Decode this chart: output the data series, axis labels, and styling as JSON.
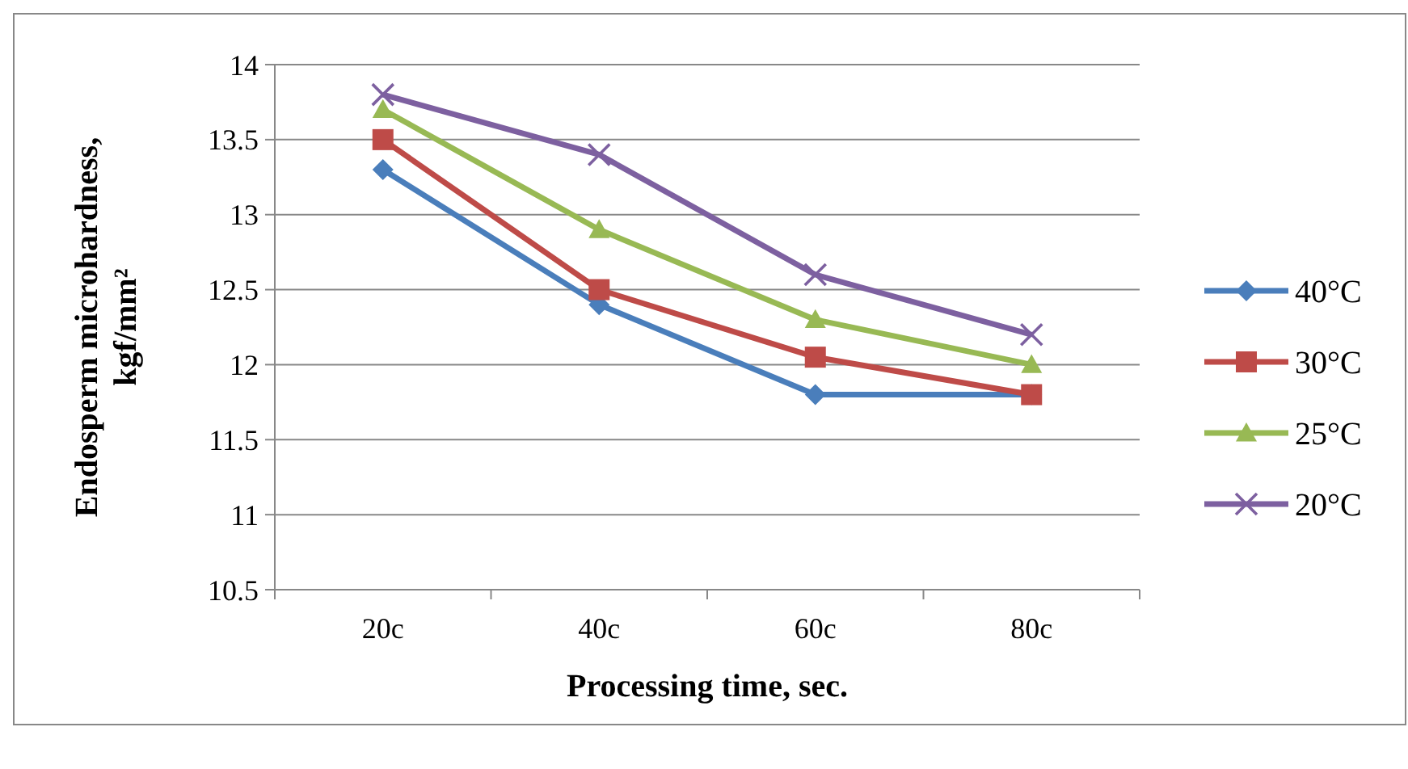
{
  "chart_data": {
    "type": "line",
    "xlabel": "Processing time, sec.",
    "ylabel": "Endosperm microhardness, kgf/mm²",
    "categories": [
      "20c",
      "40c",
      "60c",
      "80c"
    ],
    "ylim": [
      10.5,
      14
    ],
    "yticks": [
      10.5,
      11,
      11.5,
      12,
      12.5,
      13,
      13.5,
      14
    ],
    "grid": "y",
    "legend": "right",
    "line_style": "solid",
    "series": [
      {
        "name": "40°C",
        "color": "#4a7ebb",
        "marker": "diamond",
        "values": [
          13.3,
          12.4,
          11.8,
          11.8
        ]
      },
      {
        "name": "30°C",
        "color": "#be4b48",
        "marker": "square",
        "values": [
          13.5,
          12.5,
          12.05,
          11.8
        ]
      },
      {
        "name": "25°C",
        "color": "#98b954",
        "marker": "triangle",
        "values": [
          13.7,
          12.9,
          12.3,
          12.0
        ]
      },
      {
        "name": "20°C",
        "color": "#7d60a0",
        "marker": "cross",
        "values": [
          13.8,
          13.4,
          12.6,
          12.2
        ]
      }
    ]
  }
}
